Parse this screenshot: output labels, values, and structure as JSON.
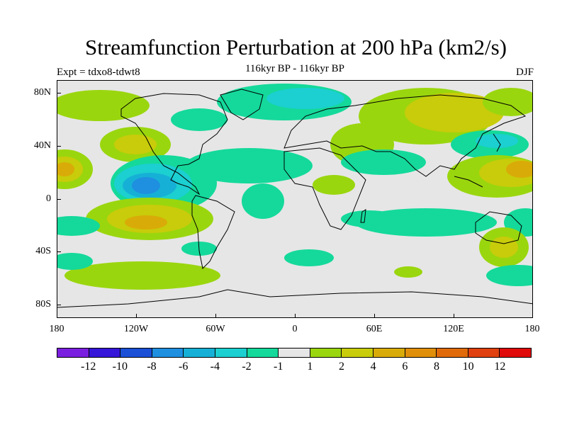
{
  "header": {
    "title": "Streamfunction Perturbation at 200 hPa (km2/s)",
    "subtitle": "116kyr BP - 116kyr BP",
    "experiment": "Expt = tdxo8-tdwt8",
    "season": "DJF"
  },
  "map": {
    "projection": "cylindrical equidistant",
    "lon_range": [
      -180,
      180
    ],
    "lat_range": [
      -90,
      90
    ],
    "y_ticks": [
      "80N",
      "40N",
      "0",
      "40S",
      "80S"
    ],
    "x_ticks": [
      "180",
      "120W",
      "60W",
      "0",
      "60E",
      "120E",
      "180"
    ],
    "background_color": "#e6e6e6"
  },
  "colorbar": {
    "colors": [
      "#7a1fe0",
      "#3616d8",
      "#1a4fd6",
      "#1f8fe0",
      "#16b0d6",
      "#1ccfd0",
      "#14d99a",
      "#e6e6e6",
      "#9ad60e",
      "#c8cc0a",
      "#d9ab08",
      "#e08f0a",
      "#e06a0a",
      "#e0400f",
      "#e00a0a"
    ],
    "labels": [
      "-12",
      "-10",
      "-8",
      "-6",
      "-4",
      "-2",
      "-1",
      "1",
      "2",
      "4",
      "6",
      "8",
      "10",
      "12"
    ]
  }
}
